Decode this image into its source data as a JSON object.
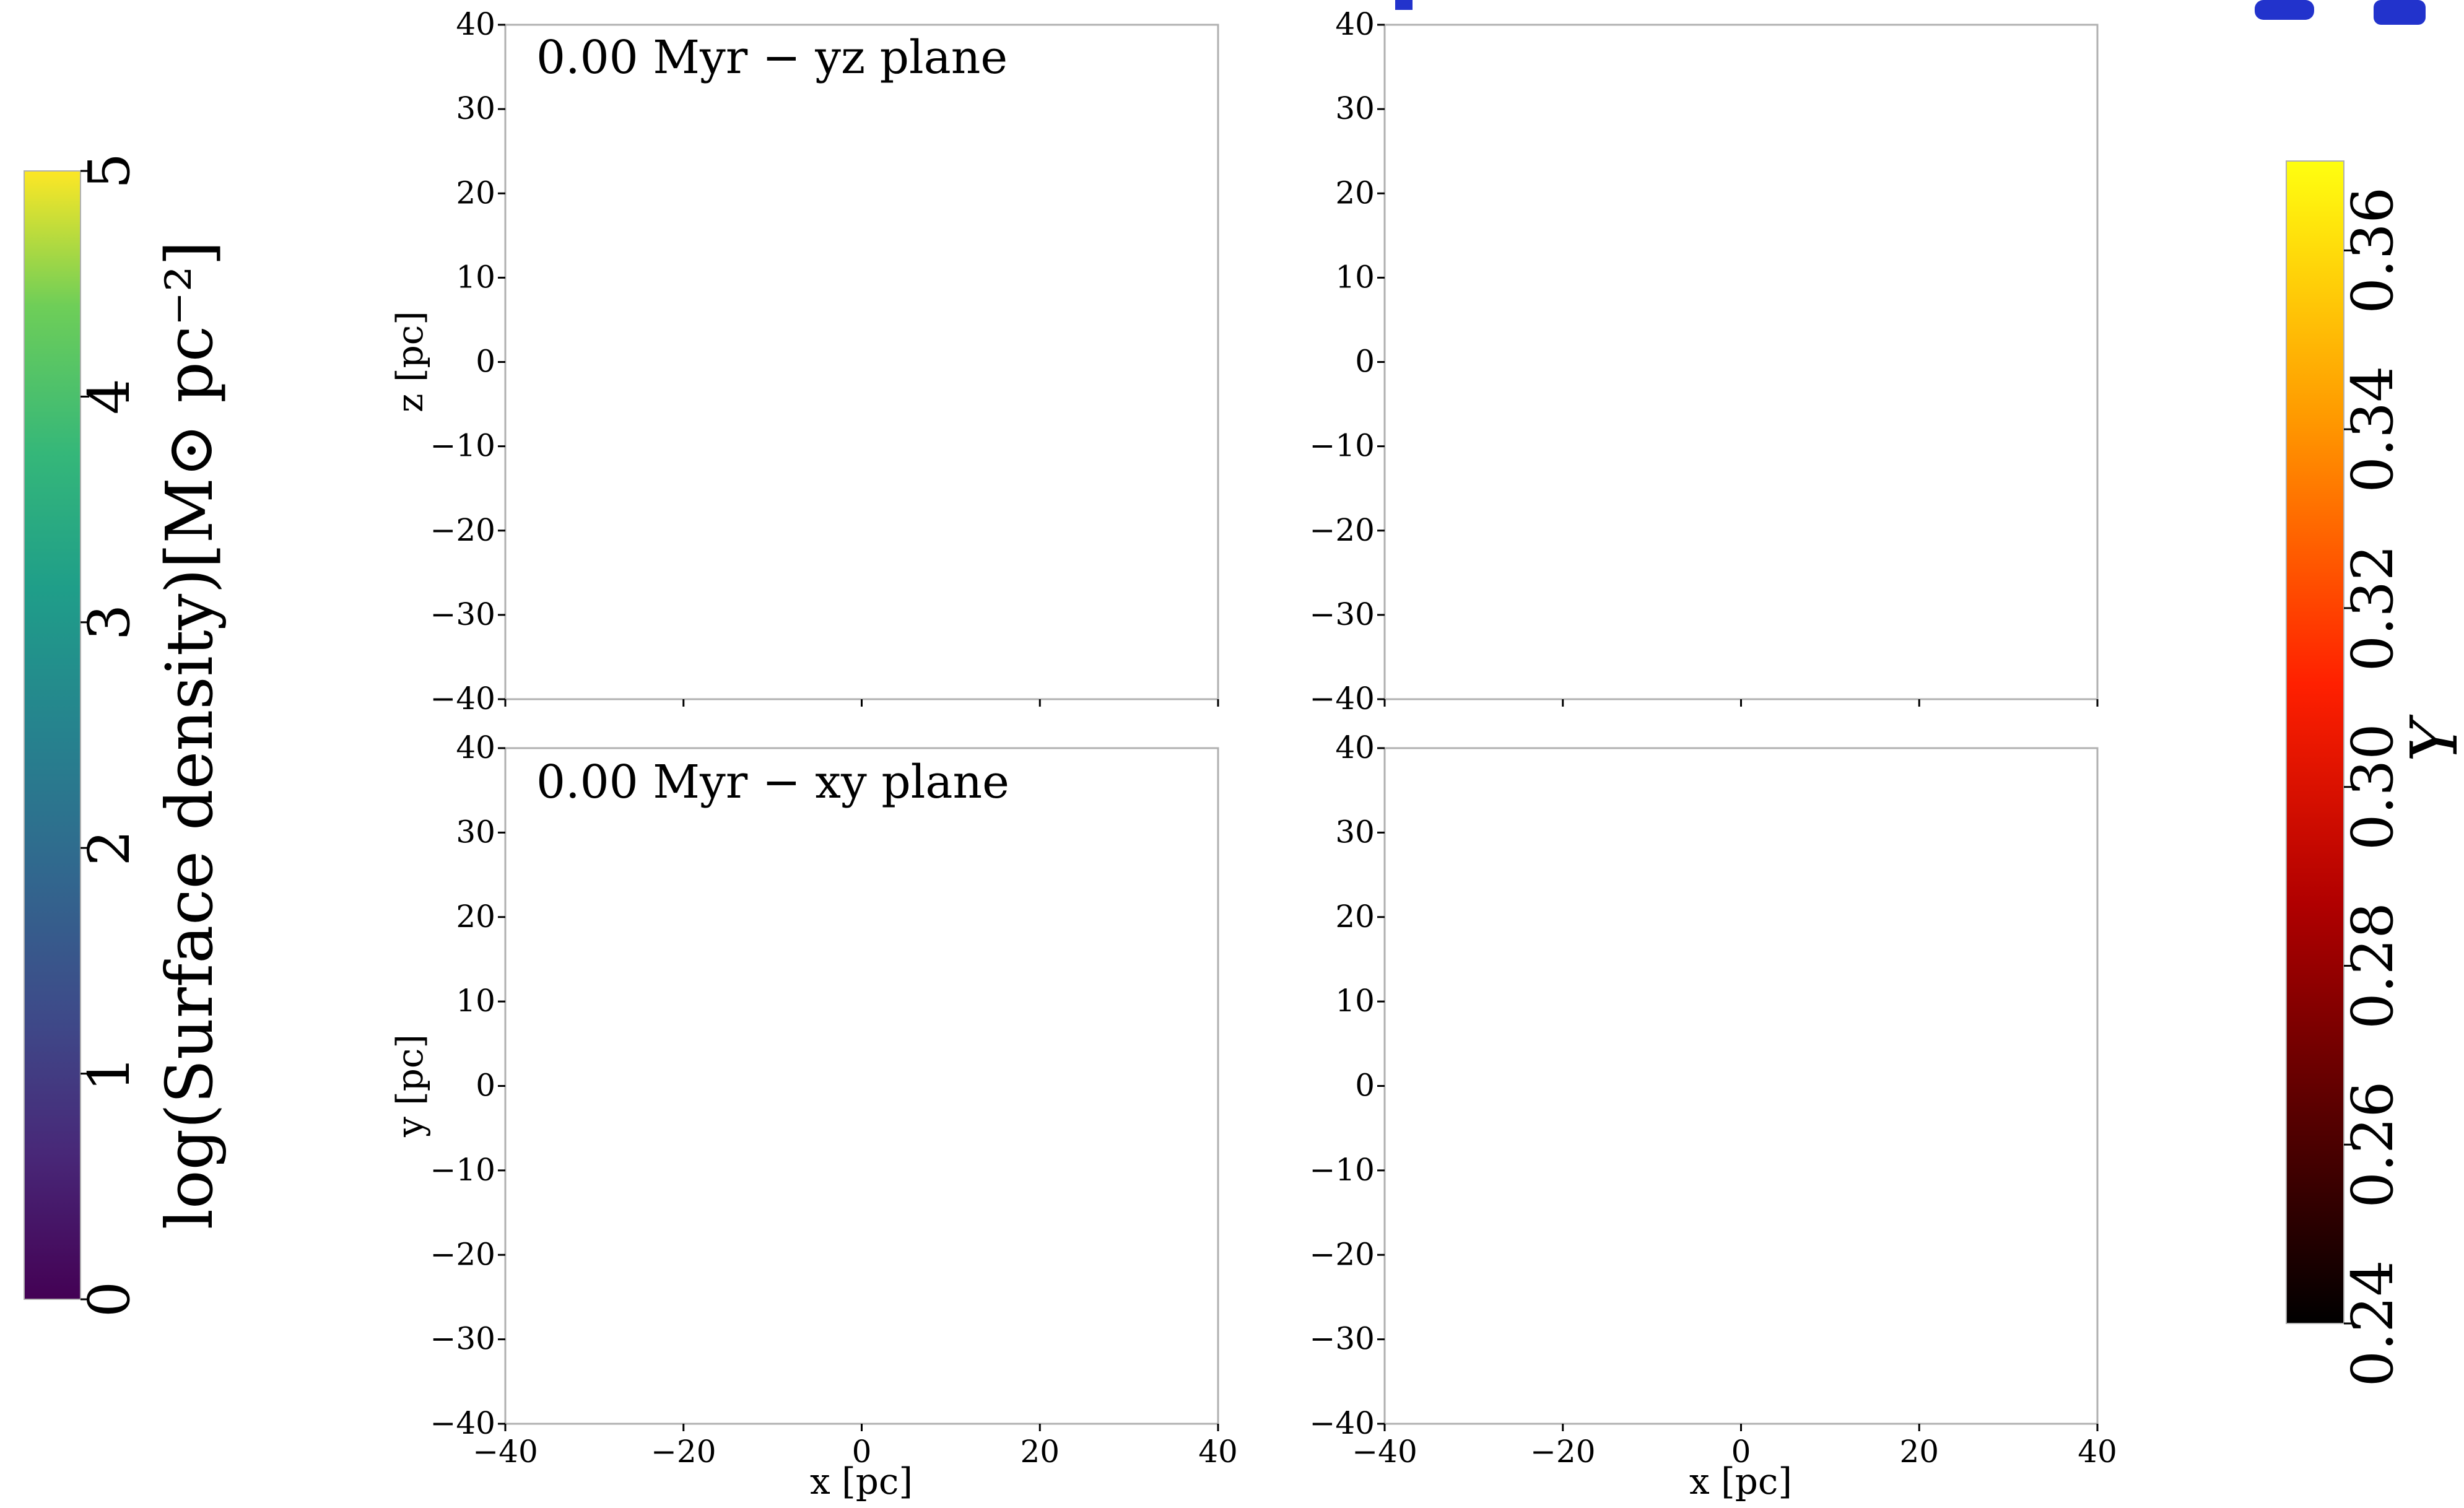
{
  "chart_data": [
    {
      "type": "heatmap",
      "title": "0.00 Myr − yz plane",
      "xlabel": "",
      "ylabel": "z [pc]",
      "xlim": [
        -40,
        40
      ],
      "ylim": [
        -40,
        40
      ],
      "xticks": [],
      "yticks": [
        "40",
        "30",
        "20",
        "10",
        "0",
        "−10",
        "−20",
        "−30",
        "−40"
      ],
      "values": []
    },
    {
      "type": "heatmap",
      "title": "",
      "xlabel": "",
      "ylabel": "",
      "xlim": [
        -40,
        40
      ],
      "ylim": [
        -40,
        40
      ],
      "xticks": [],
      "yticks": [
        "40",
        "30",
        "20",
        "10",
        "0",
        "−10",
        "−20",
        "−30",
        "−40"
      ],
      "values": []
    },
    {
      "type": "heatmap",
      "title": "0.00 Myr − xy plane",
      "xlabel": "x [pc]",
      "ylabel": "y [pc]",
      "xlim": [
        -40,
        40
      ],
      "ylim": [
        -40,
        40
      ],
      "xticks": [
        "−40",
        "−20",
        "0",
        "20",
        "40"
      ],
      "yticks": [
        "40",
        "30",
        "20",
        "10",
        "0",
        "−10",
        "−20",
        "−30",
        "−40"
      ],
      "values": []
    },
    {
      "type": "heatmap",
      "title": "",
      "xlabel": "x [pc]",
      "ylabel": "",
      "xlim": [
        -40,
        40
      ],
      "ylim": [
        -40,
        40
      ],
      "xticks": [
        "−40",
        "−20",
        "0",
        "20",
        "40"
      ],
      "yticks": [
        "40",
        "30",
        "20",
        "10",
        "0",
        "−10",
        "−20",
        "−30",
        "−40"
      ],
      "values": []
    }
  ],
  "colorbars": {
    "left": {
      "label": "log(Surface density)[M⊙ pc⁻²]",
      "colormap": "viridis",
      "range": [
        0,
        5
      ],
      "ticks": [
        "0",
        "1",
        "2",
        "3",
        "4",
        "5"
      ]
    },
    "right": {
      "label": "Y",
      "colormap": "hot",
      "range": [
        0.24,
        0.37
      ],
      "ticks": [
        "0.24",
        "0.26",
        "0.28",
        "0.30",
        "0.32",
        "0.34",
        "0.36"
      ]
    }
  },
  "colors": {
    "axes_frame": "#b0b0b0",
    "clipped_title": "#2233cc"
  }
}
